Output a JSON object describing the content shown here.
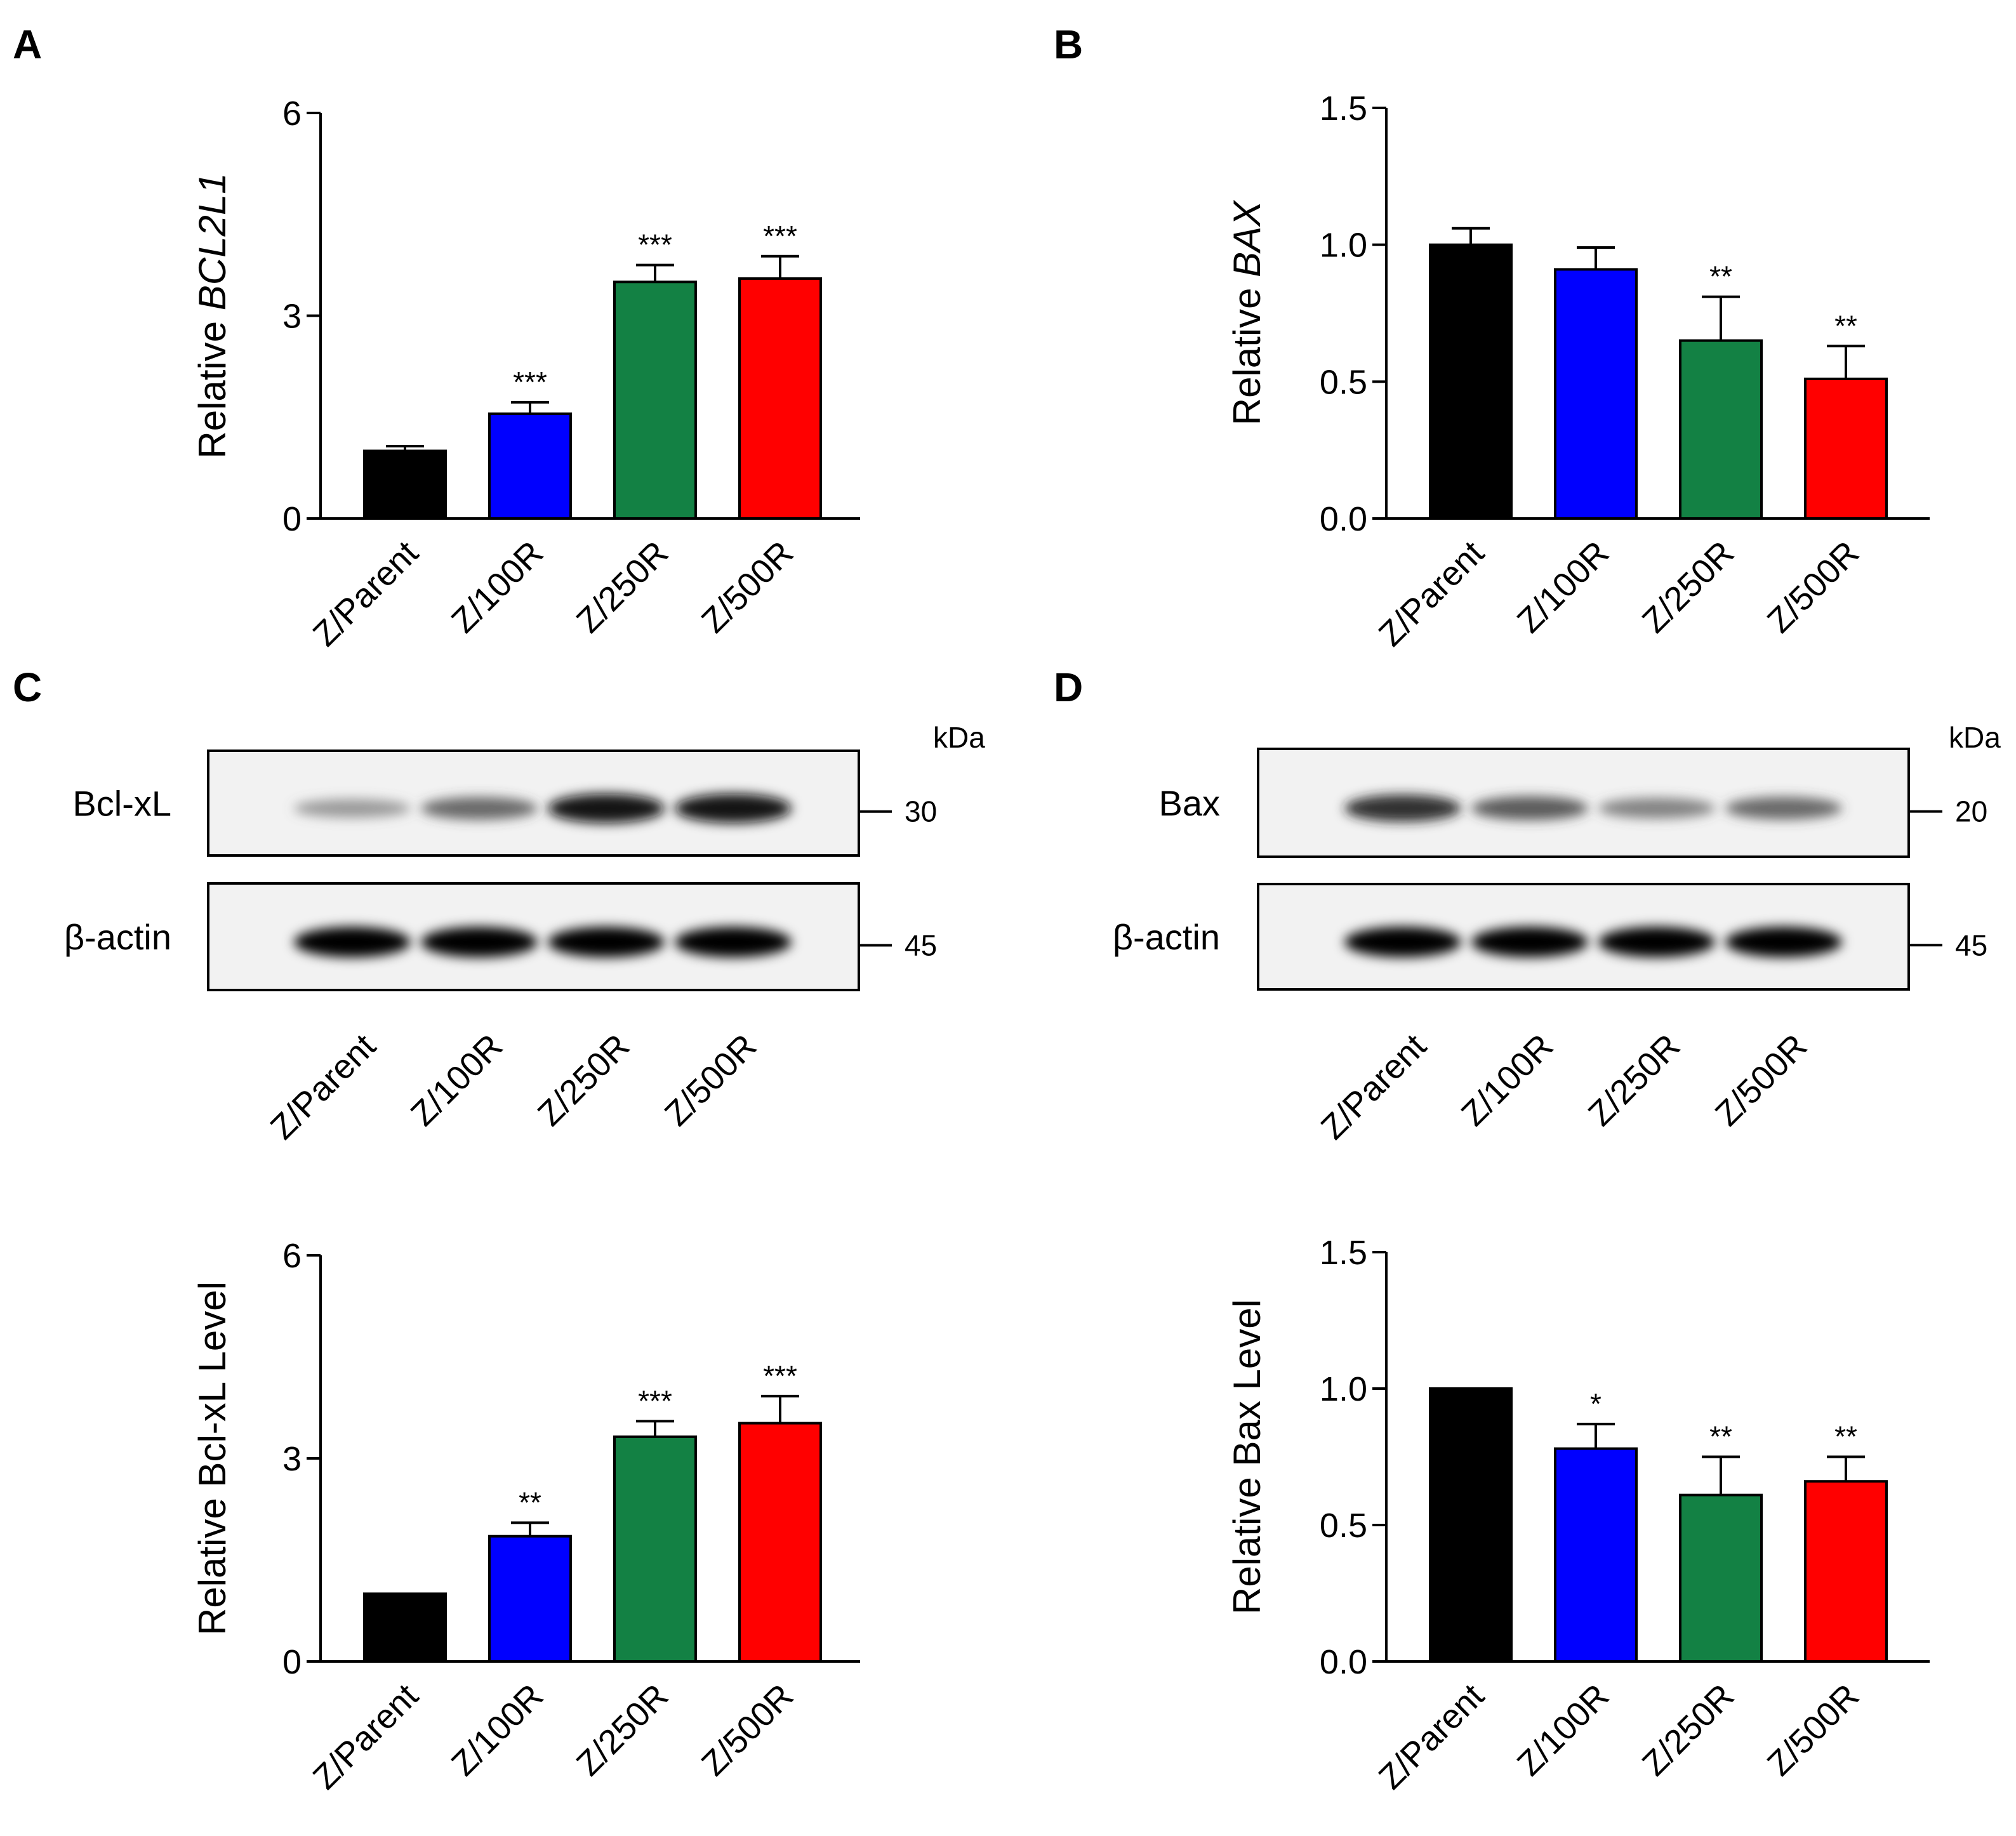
{
  "figure": {
    "panels": [
      "A",
      "B",
      "C",
      "D"
    ]
  },
  "colors": {
    "Z/Parent": "#000000",
    "Z/100R": "#0000ff",
    "Z/250R": "#138144",
    "Z/500R": "#ff0000"
  },
  "chart_data": [
    {
      "panel": "A",
      "type": "bar",
      "categories": [
        "Z/Parent",
        "Z/100R",
        "Z/250R",
        "Z/500R"
      ],
      "values": [
        1.0,
        1.55,
        3.5,
        3.55
      ],
      "errors": [
        0.07,
        0.17,
        0.25,
        0.33
      ],
      "significance": [
        "",
        "***",
        "***",
        "***"
      ],
      "ylabel_prefix": "Relative ",
      "ylabel_italic": "BCL2L1",
      "ylim": [
        0,
        6
      ],
      "yticks": [
        "0",
        "3",
        "6"
      ]
    },
    {
      "panel": "B",
      "type": "bar",
      "categories": [
        "Z/Parent",
        "Z/100R",
        "Z/250R",
        "Z/500R"
      ],
      "values": [
        1.0,
        0.91,
        0.65,
        0.51
      ],
      "errors": [
        0.06,
        0.08,
        0.16,
        0.12
      ],
      "significance": [
        "",
        "",
        "**",
        "**"
      ],
      "ylabel_prefix": "Relative ",
      "ylabel_italic": "BAX",
      "ylim": [
        0,
        1.5
      ],
      "yticks": [
        "0.0",
        "0.5",
        "1.0",
        "1.5"
      ]
    },
    {
      "panel": "C",
      "type": "bar",
      "categories": [
        "Z/Parent",
        "Z/100R",
        "Z/250R",
        "Z/500R"
      ],
      "values": [
        1.0,
        1.85,
        3.32,
        3.52
      ],
      "errors": [
        0.0,
        0.2,
        0.23,
        0.4
      ],
      "significance": [
        "",
        "**",
        "***",
        "***"
      ],
      "ylabel": "Relative Bcl-xL Level",
      "ylim": [
        0,
        6
      ],
      "yticks": [
        "0",
        "3",
        "6"
      ]
    },
    {
      "panel": "D",
      "type": "bar",
      "categories": [
        "Z/Parent",
        "Z/100R",
        "Z/250R",
        "Z/500R"
      ],
      "values": [
        1.0,
        0.78,
        0.61,
        0.66
      ],
      "errors": [
        0.0,
        0.09,
        0.14,
        0.09
      ],
      "significance": [
        "",
        "*",
        "**",
        "**"
      ],
      "ylabel": "Relative Bax Level",
      "ylim": [
        0,
        1.5
      ],
      "yticks": [
        "0.0",
        "0.5",
        "1.0",
        "1.5"
      ]
    }
  ],
  "blots": [
    {
      "panel": "C",
      "unit": "kDa",
      "rows": [
        {
          "label": "Bcl-xL",
          "marker": "30",
          "intensities": [
            0.45,
            0.65,
            0.95,
            0.95
          ]
        },
        {
          "label": "β-actin",
          "marker": "45",
          "intensities": [
            1.0,
            1.0,
            1.0,
            1.0
          ]
        }
      ],
      "lanes": [
        "Z/Parent",
        "Z/100R",
        "Z/250R",
        "Z/500R"
      ]
    },
    {
      "panel": "D",
      "unit": "kDa",
      "rows": [
        {
          "label": "Bax",
          "marker": "20",
          "intensities": [
            0.85,
            0.7,
            0.55,
            0.65
          ]
        },
        {
          "label": "β-actin",
          "marker": "45",
          "intensities": [
            1.0,
            1.0,
            1.0,
            1.0
          ]
        }
      ],
      "lanes": [
        "Z/Parent",
        "Z/100R",
        "Z/250R",
        "Z/500R"
      ]
    }
  ]
}
